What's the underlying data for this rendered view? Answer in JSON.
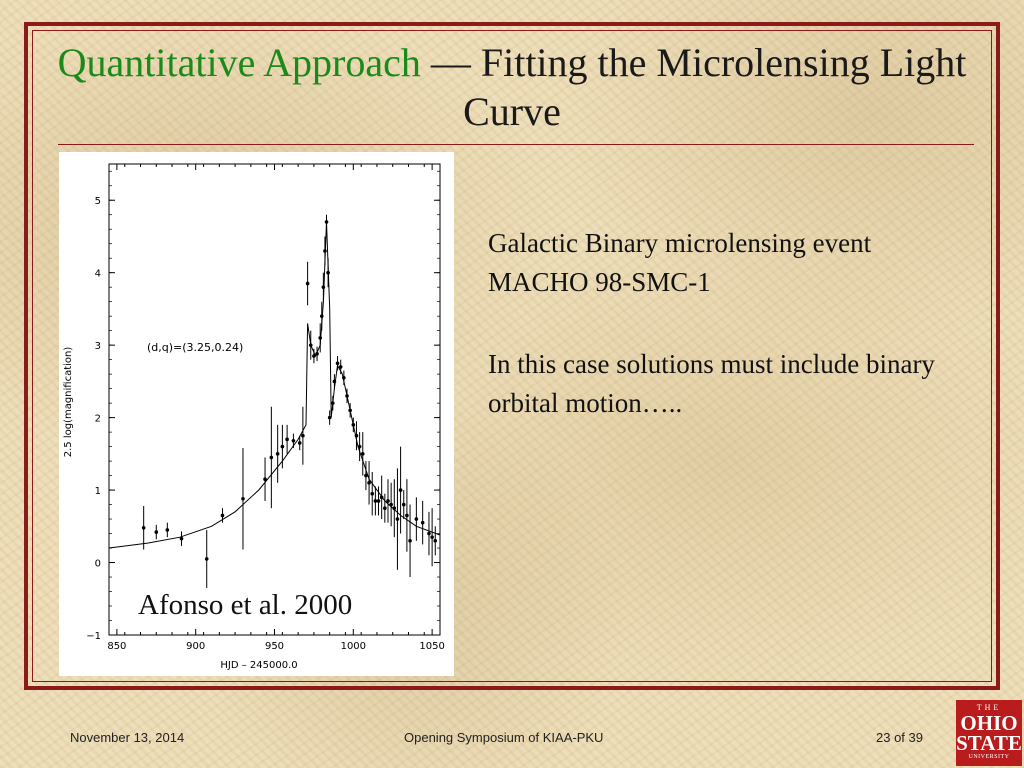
{
  "title": {
    "green_part": "Quantitative Approach",
    "dash": " — ",
    "rest": "Fitting the Microlensing Light Curve"
  },
  "colors": {
    "frame": "#8b1a1a",
    "title_green": "#1a8a1a",
    "logo": "#b81c1c"
  },
  "body": {
    "paragraph1": "Galactic Binary microlensing event MACHO 98-SMC-1",
    "paragraph2": "In this case solutions must include binary orbital motion….."
  },
  "citation": "Afonso et al. 2000",
  "footer": {
    "date": "November 13, 2014",
    "event": "Opening Symposium of KIAA-PKU",
    "page": "23 of 39"
  },
  "logo": {
    "the": "THE",
    "ohio": "OHIO",
    "state": "STATE",
    "university": "UNIVERSITY"
  },
  "chart_data": {
    "type": "scatter",
    "xlabel": "HJD – 245000.0",
    "ylabel": "2.5 log(magnification)",
    "xlim": [
      845,
      1055
    ],
    "ylim": [
      -1,
      5.5
    ],
    "xticks": [
      850,
      900,
      950,
      1000,
      1050
    ],
    "yticks": [
      -1,
      0,
      1,
      2,
      3,
      4,
      5
    ],
    "annotation": "(d,q)=(3.25,0.24)",
    "points": [
      {
        "x": 867,
        "y": 0.48,
        "err": 0.3
      },
      {
        "x": 875,
        "y": 0.42,
        "err": 0.1
      },
      {
        "x": 882,
        "y": 0.45,
        "err": 0.1
      },
      {
        "x": 891,
        "y": 0.33,
        "err": 0.1
      },
      {
        "x": 907,
        "y": 0.05,
        "err": 0.4
      },
      {
        "x": 917,
        "y": 0.65,
        "err": 0.1
      },
      {
        "x": 930,
        "y": 0.88,
        "err": 0.7
      },
      {
        "x": 944,
        "y": 1.15,
        "err": 0.3
      },
      {
        "x": 948,
        "y": 1.45,
        "err": 0.7
      },
      {
        "x": 952,
        "y": 1.5,
        "err": 0.4
      },
      {
        "x": 955,
        "y": 1.6,
        "err": 0.3
      },
      {
        "x": 958,
        "y": 1.7,
        "err": 0.2
      },
      {
        "x": 962,
        "y": 1.68,
        "err": 0.1
      },
      {
        "x": 966,
        "y": 1.65,
        "err": 0.1
      },
      {
        "x": 968,
        "y": 1.75,
        "err": 0.4
      },
      {
        "x": 971,
        "y": 3.85,
        "err": 0.3
      },
      {
        "x": 973,
        "y": 3.0,
        "err": 0.2
      },
      {
        "x": 975,
        "y": 2.85,
        "err": 0.1
      },
      {
        "x": 977,
        "y": 2.88,
        "err": 0.1
      },
      {
        "x": 979,
        "y": 3.1,
        "err": 0.2
      },
      {
        "x": 980,
        "y": 3.4,
        "err": 0.2
      },
      {
        "x": 981,
        "y": 3.8,
        "err": 0.2
      },
      {
        "x": 982,
        "y": 4.3,
        "err": 0.2
      },
      {
        "x": 983,
        "y": 4.7,
        "err": 0.1
      },
      {
        "x": 984,
        "y": 4.0,
        "err": 0.2
      },
      {
        "x": 985,
        "y": 2.0,
        "err": 0.1
      },
      {
        "x": 987,
        "y": 2.2,
        "err": 0.1
      },
      {
        "x": 988,
        "y": 2.5,
        "err": 0.1
      },
      {
        "x": 990,
        "y": 2.75,
        "err": 0.1
      },
      {
        "x": 992,
        "y": 2.7,
        "err": 0.1
      },
      {
        "x": 994,
        "y": 2.55,
        "err": 0.1
      },
      {
        "x": 996,
        "y": 2.3,
        "err": 0.1
      },
      {
        "x": 998,
        "y": 2.1,
        "err": 0.1
      },
      {
        "x": 1000,
        "y": 1.9,
        "err": 0.1
      },
      {
        "x": 1002,
        "y": 1.75,
        "err": 0.2
      },
      {
        "x": 1004,
        "y": 1.6,
        "err": 0.2
      },
      {
        "x": 1006,
        "y": 1.5,
        "err": 0.3
      },
      {
        "x": 1008,
        "y": 1.2,
        "err": 0.2
      },
      {
        "x": 1010,
        "y": 1.1,
        "err": 0.3
      },
      {
        "x": 1012,
        "y": 0.95,
        "err": 0.3
      },
      {
        "x": 1014,
        "y": 0.85,
        "err": 0.2
      },
      {
        "x": 1016,
        "y": 0.85,
        "err": 0.2
      },
      {
        "x": 1018,
        "y": 0.9,
        "err": 0.3
      },
      {
        "x": 1020,
        "y": 0.75,
        "err": 0.2
      },
      {
        "x": 1022,
        "y": 0.85,
        "err": 0.3
      },
      {
        "x": 1024,
        "y": 0.8,
        "err": 0.3
      },
      {
        "x": 1026,
        "y": 0.75,
        "err": 0.4
      },
      {
        "x": 1028,
        "y": 0.6,
        "err": 0.7
      },
      {
        "x": 1030,
        "y": 1.0,
        "err": 0.6
      },
      {
        "x": 1032,
        "y": 0.8,
        "err": 0.2
      },
      {
        "x": 1034,
        "y": 0.65,
        "err": 0.5
      },
      {
        "x": 1036,
        "y": 0.3,
        "err": 0.5
      },
      {
        "x": 1040,
        "y": 0.6,
        "err": 0.3
      },
      {
        "x": 1044,
        "y": 0.55,
        "err": 0.3
      },
      {
        "x": 1048,
        "y": 0.4,
        "err": 0.3
      },
      {
        "x": 1050,
        "y": 0.35,
        "err": 0.4
      },
      {
        "x": 1052,
        "y": 0.3,
        "err": 0.2
      }
    ],
    "model_curve": [
      [
        845,
        0.2
      ],
      [
        870,
        0.27
      ],
      [
        890,
        0.35
      ],
      [
        910,
        0.5
      ],
      [
        925,
        0.7
      ],
      [
        940,
        1.0
      ],
      [
        955,
        1.4
      ],
      [
        965,
        1.7
      ],
      [
        970,
        1.9
      ],
      [
        971,
        3.3
      ],
      [
        973,
        3.0
      ],
      [
        976,
        2.85
      ],
      [
        979,
        3.0
      ],
      [
        981,
        3.6
      ],
      [
        983,
        4.7
      ],
      [
        985,
        3.5
      ],
      [
        986,
        2.0
      ],
      [
        988,
        2.4
      ],
      [
        990,
        2.72
      ],
      [
        993,
        2.6
      ],
      [
        997,
        2.2
      ],
      [
        1003,
        1.6
      ],
      [
        1010,
        1.15
      ],
      [
        1020,
        0.85
      ],
      [
        1030,
        0.65
      ],
      [
        1040,
        0.5
      ],
      [
        1055,
        0.38
      ]
    ]
  }
}
